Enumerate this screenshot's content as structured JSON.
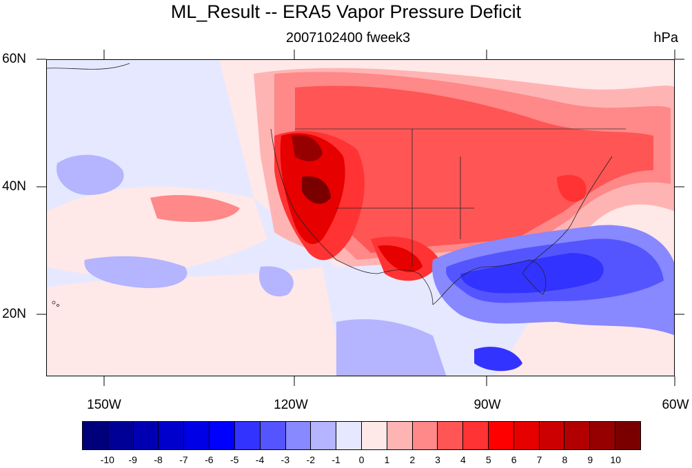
{
  "title": "ML_Result -- ERA5 Vapor Pressure Deficit",
  "subtitle_center": "2007102400 fweek3",
  "subtitle_right": "hPa",
  "lat_labels": [
    "60N",
    "40N",
    "20N"
  ],
  "lon_labels": [
    "150W",
    "120W",
    "90W",
    "60W"
  ],
  "map": {
    "region": "North America",
    "lon_range": [
      -160,
      -60
    ],
    "lat_range": [
      10,
      60
    ],
    "field": "Vapor Pressure Deficit anomaly",
    "units": "hPa"
  },
  "colorbar": {
    "colors": [
      "#00007a",
      "#000096",
      "#0000b2",
      "#0000cc",
      "#0000e6",
      "#0000ff",
      "#3333ff",
      "#5555ff",
      "#8888ff",
      "#b4b4ff",
      "#e6e8ff",
      "#ffe8e8",
      "#ffb4b4",
      "#ff8888",
      "#ff5555",
      "#ff3333",
      "#ff0000",
      "#e60000",
      "#cc0000",
      "#b20000",
      "#960000",
      "#7a0000"
    ],
    "labels": [
      "-10",
      "-9",
      "-8",
      "-7",
      "-6",
      "-5",
      "-4",
      "-3",
      "-2",
      "-1",
      "0",
      "1",
      "2",
      "3",
      "4",
      "5",
      "6",
      "7",
      "8",
      "9",
      "10"
    ]
  }
}
